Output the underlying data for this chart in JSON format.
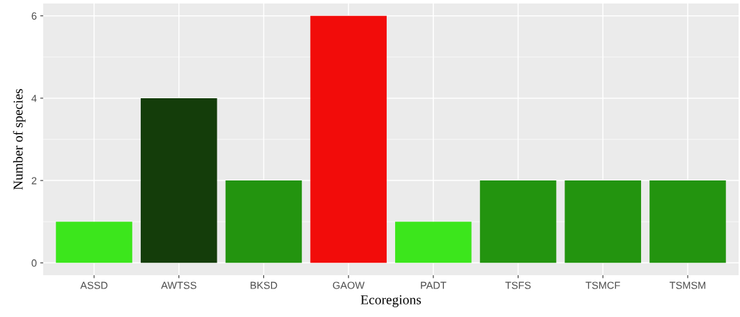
{
  "chart_data": {
    "type": "bar",
    "xlabel": "Ecoregions",
    "ylabel": "Number of species",
    "categories": [
      "ASSD",
      "AWTSS",
      "BKSD",
      "GAOW",
      "PADT",
      "TSFS",
      "TSMCF",
      "TSMSM"
    ],
    "values": [
      1,
      4,
      2,
      6,
      1,
      2,
      2,
      2
    ],
    "colors": [
      "#3ce61c",
      "#143d0a",
      "#23940f",
      "#f20c0a",
      "#3ce61c",
      "#23940f",
      "#23940f",
      "#23940f"
    ],
    "ylim": [
      -0.3,
      6.3
    ],
    "yticks": [
      0,
      2,
      4,
      6
    ],
    "grid": true
  }
}
